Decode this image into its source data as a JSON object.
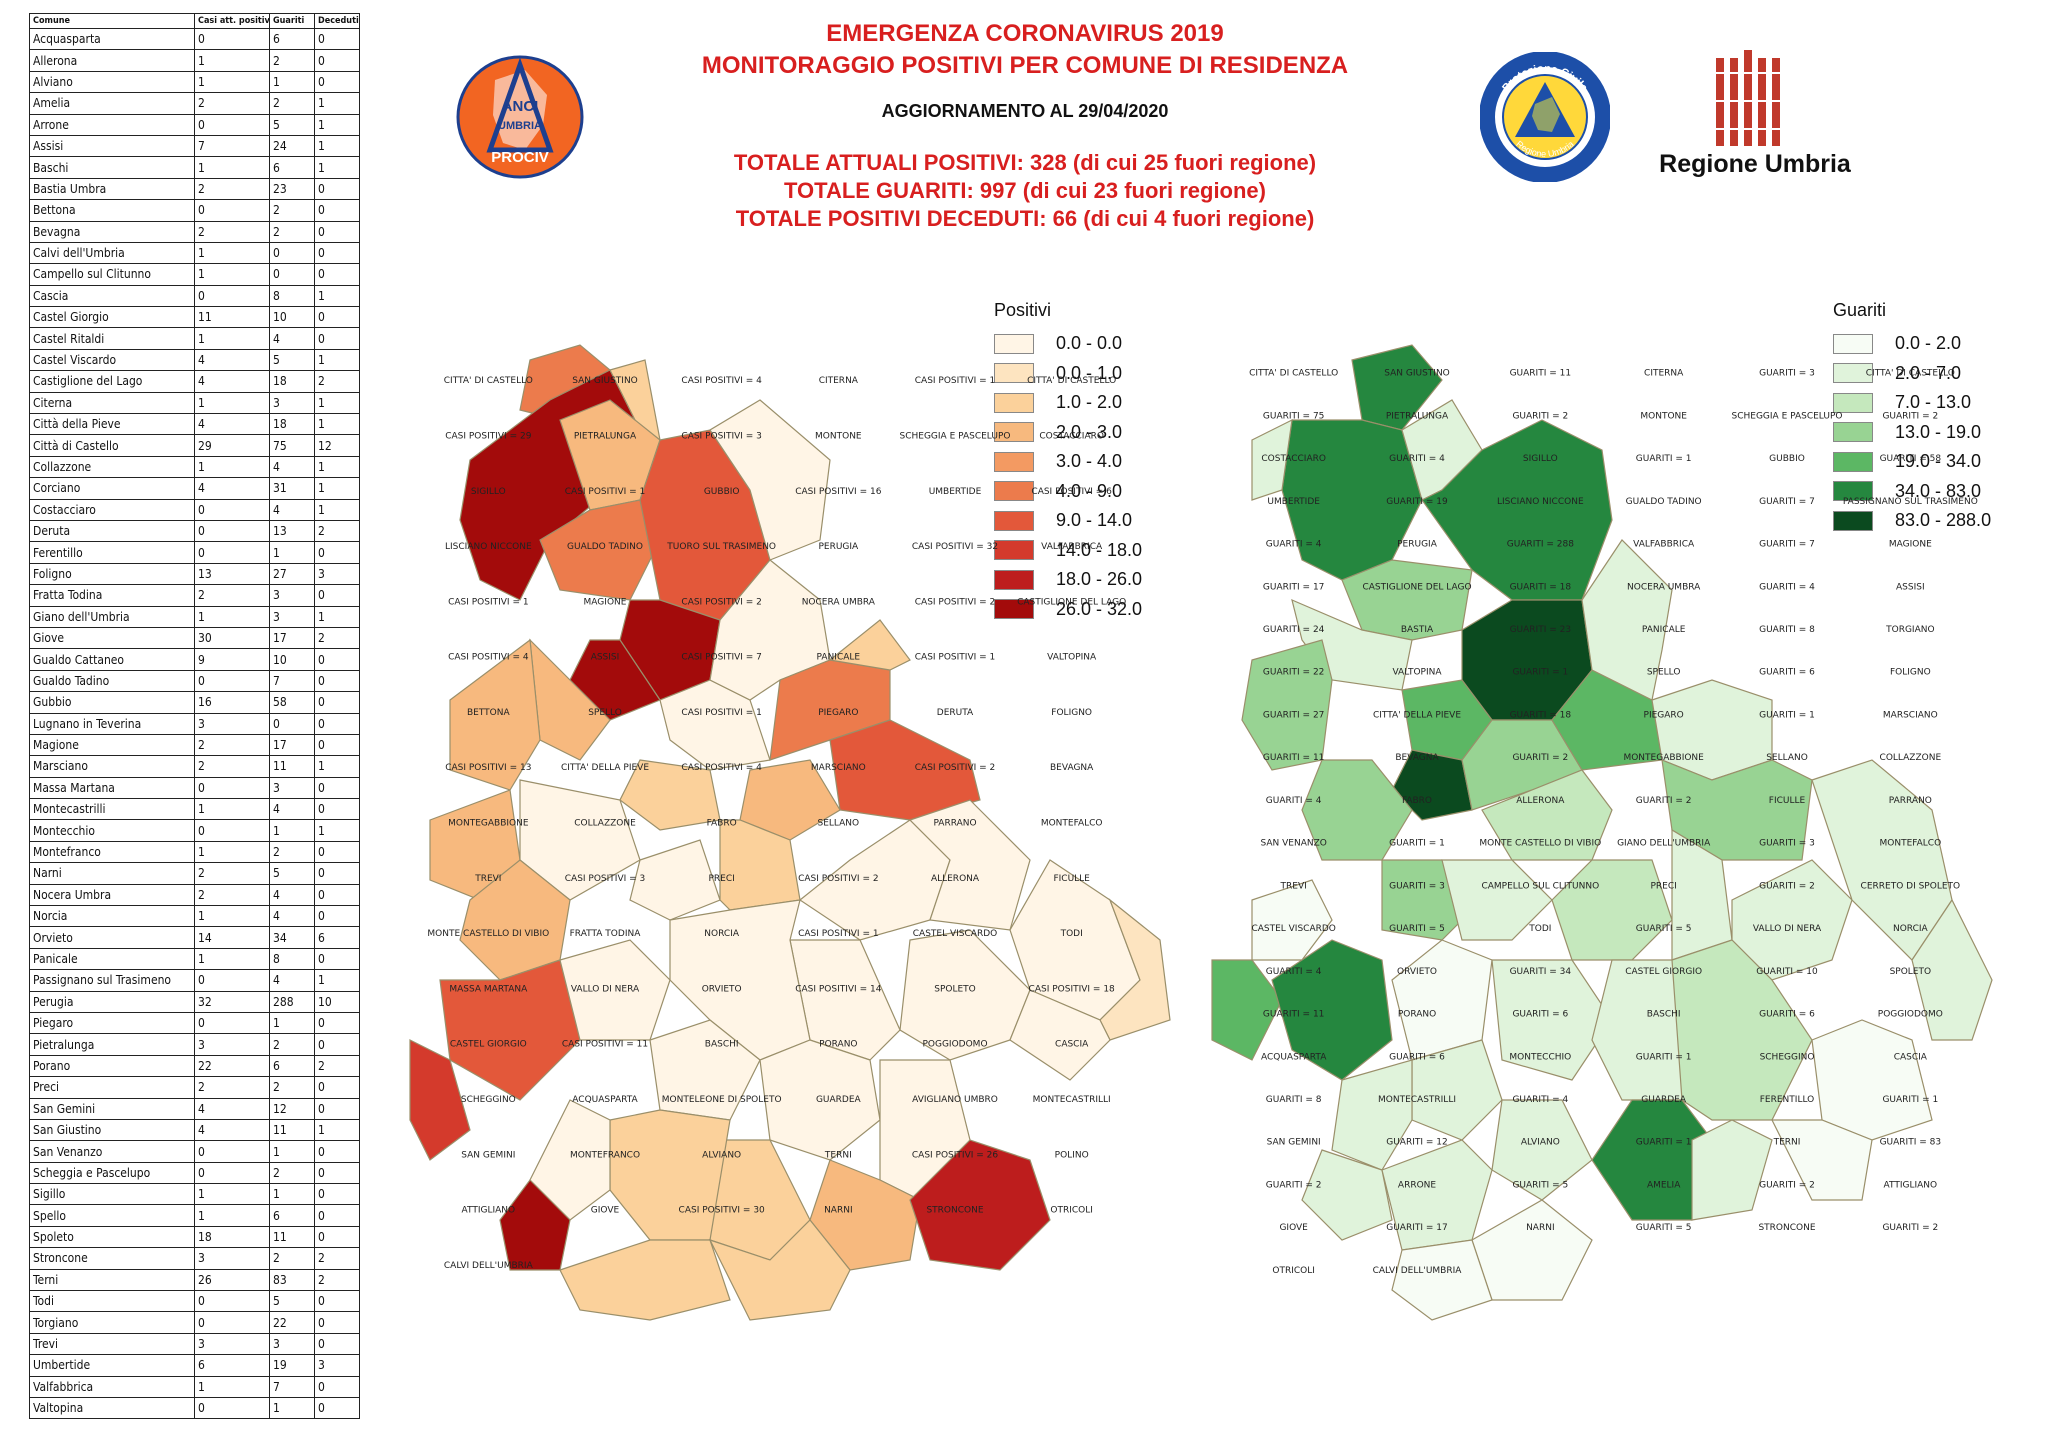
{
  "header": {
    "title_line1": "EMERGENZA CORONAVIRUS 2019",
    "title_line2": "MONITORAGGIO POSITIVI PER COMUNE DI RESIDENZA",
    "update": "AGGIORNAMENTO AL 29/04/2020",
    "total_positive": "TOTALE ATTUALI POSITIVI: 328 (di cui 25 fuori regione)",
    "total_recovered": "TOTALE GUARITI: 997 (di cui 23 fuori regione)",
    "total_deceased": "TOTALE POSITIVI DECEDUTI: 66 (di cui 4 fuori regione)"
  },
  "logos": {
    "anci_text_top": "ANCI",
    "anci_text_mid": "UMBRIA",
    "anci_text_bottom": "PROCIV",
    "pc_ring_top": "Protezione Civile",
    "pc_ring_bottom": "Regione Umbria",
    "umbria_caption": "Regione Umbria"
  },
  "table": {
    "headers": [
      "Comune",
      "Casi att. positivi",
      "Guariti",
      "Deceduti"
    ],
    "rows": [
      [
        "Acquasparta",
        "0",
        "6",
        "0"
      ],
      [
        "Allerona",
        "1",
        "2",
        "0"
      ],
      [
        "Alviano",
        "1",
        "1",
        "0"
      ],
      [
        "Amelia",
        "2",
        "2",
        "1"
      ],
      [
        "Arrone",
        "0",
        "5",
        "1"
      ],
      [
        "Assisi",
        "7",
        "24",
        "1"
      ],
      [
        "Baschi",
        "1",
        "6",
        "1"
      ],
      [
        "Bastia Umbra",
        "2",
        "23",
        "0"
      ],
      [
        "Bettona",
        "0",
        "2",
        "0"
      ],
      [
        "Bevagna",
        "2",
        "2",
        "0"
      ],
      [
        "Calvi dell'Umbria",
        "1",
        "0",
        "0"
      ],
      [
        "Campello sul Clitunno",
        "1",
        "0",
        "0"
      ],
      [
        "Cascia",
        "0",
        "8",
        "1"
      ],
      [
        "Castel Giorgio",
        "11",
        "10",
        "0"
      ],
      [
        "Castel Ritaldi",
        "1",
        "4",
        "0"
      ],
      [
        "Castel Viscardo",
        "4",
        "5",
        "1"
      ],
      [
        "Castiglione del Lago",
        "4",
        "18",
        "2"
      ],
      [
        "Citerna",
        "1",
        "3",
        "1"
      ],
      [
        "Città  della Pieve",
        "4",
        "18",
        "1"
      ],
      [
        "Città  di Castello",
        "29",
        "75",
        "12"
      ],
      [
        "Collazzone",
        "1",
        "4",
        "1"
      ],
      [
        "Corciano",
        "4",
        "31",
        "1"
      ],
      [
        "Costacciaro",
        "0",
        "4",
        "1"
      ],
      [
        "Deruta",
        "0",
        "13",
        "2"
      ],
      [
        "Ferentillo",
        "0",
        "1",
        "0"
      ],
      [
        "Foligno",
        "13",
        "27",
        "3"
      ],
      [
        "Fratta Todina",
        "2",
        "3",
        "0"
      ],
      [
        "Giano dell'Umbria",
        "1",
        "3",
        "1"
      ],
      [
        "Giove",
        "30",
        "17",
        "2"
      ],
      [
        "Gualdo Cattaneo",
        "9",
        "10",
        "0"
      ],
      [
        "Gualdo Tadino",
        "0",
        "7",
        "0"
      ],
      [
        "Gubbio",
        "16",
        "58",
        "0"
      ],
      [
        "Lugnano in Teverina",
        "3",
        "0",
        "0"
      ],
      [
        "Magione",
        "2",
        "17",
        "0"
      ],
      [
        "Marsciano",
        "2",
        "11",
        "1"
      ],
      [
        "Massa Martana",
        "0",
        "3",
        "0"
      ],
      [
        "Montecastrilli",
        "1",
        "4",
        "0"
      ],
      [
        "Montecchio",
        "0",
        "1",
        "1"
      ],
      [
        "Montefranco",
        "1",
        "2",
        "0"
      ],
      [
        "Narni",
        "2",
        "5",
        "0"
      ],
      [
        "Nocera Umbra",
        "2",
        "4",
        "0"
      ],
      [
        "Norcia",
        "1",
        "4",
        "0"
      ],
      [
        "Orvieto",
        "14",
        "34",
        "6"
      ],
      [
        "Panicale",
        "1",
        "8",
        "0"
      ],
      [
        "Passignano sul Trasimeno",
        "0",
        "4",
        "1"
      ],
      [
        "Perugia",
        "32",
        "288",
        "10"
      ],
      [
        "Piegaro",
        "0",
        "1",
        "0"
      ],
      [
        "Pietralunga",
        "3",
        "2",
        "0"
      ],
      [
        "Porano",
        "22",
        "6",
        "2"
      ],
      [
        "Preci",
        "2",
        "2",
        "0"
      ],
      [
        "San Gemini",
        "4",
        "12",
        "0"
      ],
      [
        "San Giustino",
        "4",
        "11",
        "1"
      ],
      [
        "San Venanzo",
        "0",
        "1",
        "0"
      ],
      [
        "Scheggia e Pascelupo",
        "0",
        "2",
        "0"
      ],
      [
        "Sigillo",
        "1",
        "1",
        "0"
      ],
      [
        "Spello",
        "1",
        "6",
        "0"
      ],
      [
        "Spoleto",
        "18",
        "11",
        "0"
      ],
      [
        "Stroncone",
        "3",
        "2",
        "2"
      ],
      [
        "Terni",
        "26",
        "83",
        "2"
      ],
      [
        "Todi",
        "0",
        "5",
        "0"
      ],
      [
        "Torgiano",
        "0",
        "22",
        "0"
      ],
      [
        "Trevi",
        "3",
        "3",
        "0"
      ],
      [
        "Umbertide",
        "6",
        "19",
        "3"
      ],
      [
        "Valfabbrica",
        "1",
        "7",
        "0"
      ],
      [
        "Valtopina",
        "0",
        "1",
        "0"
      ]
    ]
  },
  "legend_positivi": {
    "title": "Positivi",
    "items": [
      {
        "label": "0.0 - 0.0",
        "color": "#fff5e6"
      },
      {
        "label": "0.0 - 1.0",
        "color": "#fde4c0"
      },
      {
        "label": "1.0 - 2.0",
        "color": "#fbd19b"
      },
      {
        "label": "2.0 - 3.0",
        "color": "#f7b97e"
      },
      {
        "label": "3.0 - 4.0",
        "color": "#f39a62"
      },
      {
        "label": "4.0 - 9.0",
        "color": "#ec7b4c"
      },
      {
        "label": "9.0 - 14.0",
        "color": "#e3583a"
      },
      {
        "label": "14.0 - 18.0",
        "color": "#d43a2c"
      },
      {
        "label": "18.0 - 26.0",
        "color": "#bd1d1d"
      },
      {
        "label": "26.0 - 32.0",
        "color": "#a30b0b"
      }
    ]
  },
  "legend_guariti": {
    "title": "Guariti",
    "items": [
      {
        "label": "0.0 - 2.0",
        "color": "#f7fcf5"
      },
      {
        "label": "2.0 - 7.0",
        "color": "#e0f3db"
      },
      {
        "label": "7.0 - 13.0",
        "color": "#c5e8bd"
      },
      {
        "label": "13.0 - 19.0",
        "color": "#98d393"
      },
      {
        "label": "19.0 - 34.0",
        "color": "#5cb764"
      },
      {
        "label": "34.0 - 83.0",
        "color": "#25873f"
      },
      {
        "label": "83.0 - 288.0",
        "color": "#0b4a1f"
      }
    ]
  },
  "map_positivi": {
    "labels": [
      "CITTA' DI CASTELLO",
      "SAN GIUSTINO",
      "CASI POSITIVI = 4",
      "CITERNA",
      "CASI POSITIVI = 1",
      "CITTA' DI CASTELLO",
      "CASI POSITIVI = 29",
      "PIETRALUNGA",
      "CASI POSITIVI = 3",
      "MONTONE",
      "SCHEGGIA E PASCELUPO",
      "COSTACCIARO",
      "SIGILLO",
      "CASI POSITIVI = 1",
      "GUBBIO",
      "CASI POSITIVI = 16",
      "UMBERTIDE",
      "CASI POSITIVI = 6",
      "LISCIANO NICCONE",
      "GUALDO TADINO",
      "TUORO SUL TRASIMENO",
      "PERUGIA",
      "CASI POSITIVI = 32",
      "VALFABBRICA",
      "CASI POSITIVI = 1",
      "MAGIONE",
      "CASI POSITIVI = 2",
      "NOCERA UMBRA",
      "CASI POSITIVI = 2",
      "CASTIGLIONE DEL LAGO",
      "CASI POSITIVI = 4",
      "ASSISI",
      "CASI POSITIVI = 7",
      "PANICALE",
      "CASI POSITIVI = 1",
      "VALTOPINA",
      "BETTONA",
      "SPELLO",
      "CASI POSITIVI = 1",
      "PIEGARO",
      "DERUTA",
      "FOLIGNO",
      "CASI POSITIVI = 13",
      "CITTA' DELLA PIEVE",
      "CASI POSITIVI = 4",
      "MARSCIANO",
      "CASI POSITIVI = 2",
      "BEVAGNA",
      "MONTEGABBIONE",
      "COLLAZZONE",
      "FABRO",
      "SELLANO",
      "PARRANO",
      "MONTEFALCO",
      "TREVI",
      "CASI POSITIVI = 3",
      "PRECI",
      "CASI POSITIVI = 2",
      "ALLERONA",
      "FICULLE",
      "MONTE CASTELLO DI VIBIO",
      "FRATTA TODINA",
      "NORCIA",
      "CASI POSITIVI = 1",
      "CASTEL VISCARDO",
      "TODI",
      "MASSA MARTANA",
      "VALLO DI NERA",
      "ORVIETO",
      "CASI POSITIVI = 14",
      "SPOLETO",
      "CASI POSITIVI = 18",
      "CASTEL GIORGIO",
      "CASI POSITIVI = 11",
      "BASCHI",
      "PORANO",
      "POGGIODOMO",
      "CASCIA",
      "SCHEGGINO",
      "ACQUASPARTA",
      "MONTELEONE DI SPOLETO",
      "GUARDEA",
      "AVIGLIANO UMBRO",
      "MONTECASTRILLI",
      "SAN GEMINI",
      "MONTEFRANCO",
      "ALVIANO",
      "TERNI",
      "CASI POSITIVI = 26",
      "POLINO",
      "ATTIGLIANO",
      "GIOVE",
      "CASI POSITIVI = 30",
      "NARNI",
      "STRONCONE",
      "OTRICOLI",
      "CALVI DELL'UMBRIA"
    ]
  },
  "map_guariti": {
    "labels": [
      "CITTA' DI CASTELLO",
      "SAN GIUSTINO",
      "GUARITI = 11",
      "CITERNA",
      "GUARITI = 3",
      "CITTA' DI CASTELLO",
      "GUARITI = 75",
      "PIETRALUNGA",
      "GUARITI = 2",
      "MONTONE",
      "SCHEGGIA E PASCELUPO",
      "GUARITI = 2",
      "COSTACCIARO",
      "GUARITI = 4",
      "SIGILLO",
      "GUARITI = 1",
      "GUBBIO",
      "GUARITI = 58",
      "UMBERTIDE",
      "GUARITI = 19",
      "LISCIANO NICCONE",
      "GUALDO TADINO",
      "GUARITI = 7",
      "PASSIGNANO SUL TRASIMENO",
      "GUARITI = 4",
      "PERUGIA",
      "GUARITI = 288",
      "VALFABBRICA",
      "GUARITI = 7",
      "MAGIONE",
      "GUARITI = 17",
      "CASTIGLIONE DEL LAGO",
      "GUARITI = 18",
      "NOCERA UMBRA",
      "GUARITI = 4",
      "ASSISI",
      "GUARITI = 24",
      "BASTIA",
      "GUARITI = 23",
      "PANICALE",
      "GUARITI = 8",
      "TORGIANO",
      "GUARITI = 22",
      "VALTOPINA",
      "GUARITI = 1",
      "SPELLO",
      "GUARITI = 6",
      "FOLIGNO",
      "GUARITI = 27",
      "CITTA' DELLA PIEVE",
      "GUARITI = 18",
      "PIEGARO",
      "GUARITI = 1",
      "MARSCIANO",
      "GUARITI = 11",
      "BEVAGNA",
      "GUARITI = 2",
      "MONTEGABBIONE",
      "SELLANO",
      "COLLAZZONE",
      "GUARITI = 4",
      "FABRO",
      "ALLERONA",
      "GUARITI = 2",
      "FICULLE",
      "PARRANO",
      "SAN VENANZO",
      "GUARITI = 1",
      "MONTE CASTELLO DI VIBIO",
      "GIANO DELL'UMBRIA",
      "GUARITI = 3",
      "MONTEFALCO",
      "TREVI",
      "GUARITI = 3",
      "CAMPELLO SUL CLITUNNO",
      "PRECI",
      "GUARITI = 2",
      "CERRETO DI SPOLETO",
      "CASTEL VISCARDO",
      "GUARITI = 5",
      "TODI",
      "GUARITI = 5",
      "VALLO DI NERA",
      "NORCIA",
      "GUARITI = 4",
      "ORVIETO",
      "GUARITI = 34",
      "CASTEL GIORGIO",
      "GUARITI = 10",
      "SPOLETO",
      "GUARITI = 11",
      "PORANO",
      "GUARITI = 6",
      "BASCHI",
      "GUARITI = 6",
      "POGGIODOMO",
      "ACQUASPARTA",
      "GUARITI = 6",
      "MONTECCHIO",
      "GUARITI = 1",
      "SCHEGGINO",
      "CASCIA",
      "GUARITI = 8",
      "MONTECASTRILLI",
      "GUARITI = 4",
      "GUARDEA",
      "FERENTILLO",
      "GUARITI = 1",
      "SAN GEMINI",
      "GUARITI = 12",
      "ALVIANO",
      "GUARITI = 1",
      "TERNI",
      "GUARITI = 83",
      "GUARITI = 2",
      "ARRONE",
      "GUARITI = 5",
      "AMELIA",
      "GUARITI = 2",
      "ATTIGLIANO",
      "GIOVE",
      "GUARITI = 17",
      "NARNI",
      "GUARITI = 5",
      "STRONCONE",
      "GUARITI = 2",
      "OTRICOLI",
      "CALVI DELL'UMBRIA"
    ]
  }
}
